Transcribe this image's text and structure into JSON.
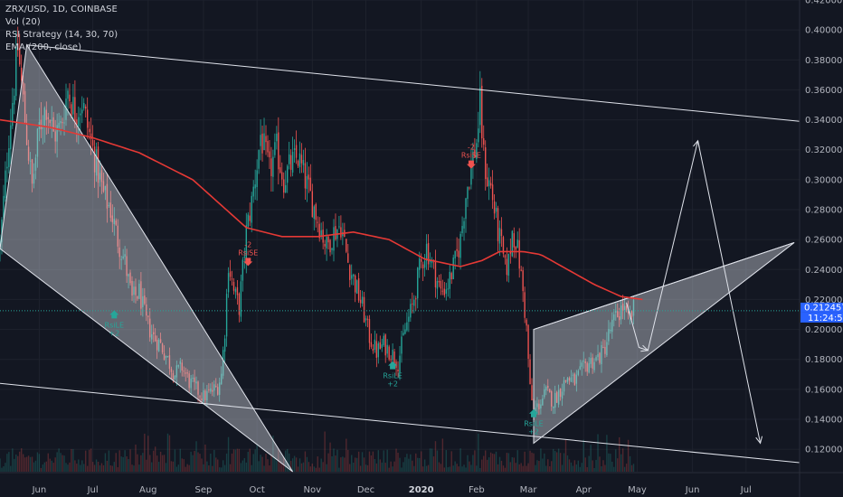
{
  "legend": {
    "symbol": "ZRX/USD, 1D, COINBASE",
    "vol": "Vol (20)",
    "rsi": "RSI Strategy (14, 30, 70)",
    "ema": "EMA (200, close)"
  },
  "colors": {
    "background": "#131722",
    "up": "#26a69a",
    "down": "#ef5350",
    "ema": "#e53935",
    "trendline": "#e0e3eb",
    "triangle_fill": "rgba(210,215,225,0.42)",
    "price_label": "#2962ff",
    "signal_long": "#26a69a",
    "signal_short": "#ef5350"
  },
  "chart_data": {
    "type": "candlestick",
    "y_axis": {
      "ylim": [
        0.105,
        0.42
      ],
      "ticks": [
        "0.420000",
        "0.400000",
        "0.380000",
        "0.360000",
        "0.340000",
        "0.320000",
        "0.300000",
        "0.280000",
        "0.260000",
        "0.240000",
        "0.220000",
        "0.200000",
        "0.180000",
        "0.160000",
        "0.140000",
        "0.120000"
      ]
    },
    "x_axis": {
      "ticks": [
        {
          "label": "Jun",
          "day": 14,
          "bold": false
        },
        {
          "label": "Jul",
          "day": 44,
          "bold": false
        },
        {
          "label": "Aug",
          "day": 75,
          "bold": false
        },
        {
          "label": "Sep",
          "day": 106,
          "bold": false
        },
        {
          "label": "Oct",
          "day": 136,
          "bold": false
        },
        {
          "label": "Nov",
          "day": 167,
          "bold": false
        },
        {
          "label": "Dec",
          "day": 197,
          "bold": false
        },
        {
          "label": "2020",
          "day": 228,
          "bold": true
        },
        {
          "label": "Feb",
          "day": 259,
          "bold": false
        },
        {
          "label": "Mar",
          "day": 288,
          "bold": false
        },
        {
          "label": "Apr",
          "day": 319,
          "bold": false
        },
        {
          "label": "May",
          "day": 349,
          "bold": false
        },
        {
          "label": "Jun",
          "day": 380,
          "bold": false
        },
        {
          "label": "Jul",
          "day": 410,
          "bold": false
        }
      ],
      "day_range": [
        -8,
        440
      ]
    },
    "price_path": [
      [
        -8,
        0.255
      ],
      [
        -3,
        0.33
      ],
      [
        2,
        0.388
      ],
      [
        6,
        0.34
      ],
      [
        10,
        0.295
      ],
      [
        14,
        0.335
      ],
      [
        18,
        0.35
      ],
      [
        22,
        0.33
      ],
      [
        26,
        0.335
      ],
      [
        30,
        0.36
      ],
      [
        34,
        0.345
      ],
      [
        38,
        0.352
      ],
      [
        42,
        0.33
      ],
      [
        46,
        0.31
      ],
      [
        50,
        0.29
      ],
      [
        54,
        0.28
      ],
      [
        58,
        0.26
      ],
      [
        62,
        0.245
      ],
      [
        66,
        0.22
      ],
      [
        70,
        0.225
      ],
      [
        74,
        0.205
      ],
      [
        78,
        0.195
      ],
      [
        82,
        0.19
      ],
      [
        86,
        0.18
      ],
      [
        90,
        0.17
      ],
      [
        94,
        0.175
      ],
      [
        98,
        0.165
      ],
      [
        102,
        0.16
      ],
      [
        106,
        0.155
      ],
      [
        110,
        0.158
      ],
      [
        114,
        0.162
      ],
      [
        116,
        0.17
      ],
      [
        118,
        0.2
      ],
      [
        120,
        0.245
      ],
      [
        123,
        0.225
      ],
      [
        126,
        0.215
      ],
      [
        128,
        0.24
      ],
      [
        130,
        0.265
      ],
      [
        133,
        0.285
      ],
      [
        136,
        0.31
      ],
      [
        138,
        0.33
      ],
      [
        141,
        0.315
      ],
      [
        143,
        0.305
      ],
      [
        147,
        0.32
      ],
      [
        151,
        0.3
      ],
      [
        155,
        0.31
      ],
      [
        159,
        0.315
      ],
      [
        163,
        0.3
      ],
      [
        167,
        0.285
      ],
      [
        171,
        0.27
      ],
      [
        175,
        0.255
      ],
      [
        179,
        0.265
      ],
      [
        183,
        0.27
      ],
      [
        187,
        0.245
      ],
      [
        191,
        0.23
      ],
      [
        195,
        0.215
      ],
      [
        199,
        0.195
      ],
      [
        203,
        0.185
      ],
      [
        207,
        0.19
      ],
      [
        211,
        0.185
      ],
      [
        215,
        0.178
      ],
      [
        219,
        0.2
      ],
      [
        223,
        0.215
      ],
      [
        227,
        0.24
      ],
      [
        231,
        0.255
      ],
      [
        235,
        0.24
      ],
      [
        239,
        0.225
      ],
      [
        243,
        0.23
      ],
      [
        247,
        0.245
      ],
      [
        250,
        0.26
      ],
      [
        253,
        0.29
      ],
      [
        256,
        0.31
      ],
      [
        259,
        0.325
      ],
      [
        261,
        0.35
      ],
      [
        263,
        0.315
      ],
      [
        265,
        0.3
      ],
      [
        267,
        0.295
      ],
      [
        269,
        0.28
      ],
      [
        271,
        0.265
      ],
      [
        273,
        0.255
      ],
      [
        275,
        0.24
      ],
      [
        277,
        0.245
      ],
      [
        279,
        0.265
      ],
      [
        281,
        0.26
      ],
      [
        283,
        0.245
      ],
      [
        285,
        0.225
      ],
      [
        287,
        0.2
      ],
      [
        289,
        0.16
      ],
      [
        291,
        0.145
      ],
      [
        294,
        0.15
      ],
      [
        298,
        0.158
      ],
      [
        302,
        0.152
      ],
      [
        306,
        0.16
      ],
      [
        310,
        0.168
      ],
      [
        314,
        0.165
      ],
      [
        318,
        0.172
      ],
      [
        322,
        0.178
      ],
      [
        326,
        0.18
      ],
      [
        330,
        0.185
      ],
      [
        334,
        0.2
      ],
      [
        338,
        0.21
      ],
      [
        341,
        0.215
      ],
      [
        344,
        0.205
      ],
      [
        347,
        0.213
      ]
    ],
    "ema_path": [
      [
        -8,
        0.34
      ],
      [
        20,
        0.335
      ],
      [
        44,
        0.328
      ],
      [
        70,
        0.318
      ],
      [
        100,
        0.3
      ],
      [
        130,
        0.268
      ],
      [
        150,
        0.262
      ],
      [
        170,
        0.262
      ],
      [
        190,
        0.265
      ],
      [
        210,
        0.26
      ],
      [
        230,
        0.247
      ],
      [
        250,
        0.242
      ],
      [
        262,
        0.246
      ],
      [
        272,
        0.252
      ],
      [
        285,
        0.252
      ],
      [
        295,
        0.25
      ],
      [
        310,
        0.24
      ],
      [
        325,
        0.23
      ],
      [
        340,
        0.222
      ],
      [
        352,
        0.22
      ]
    ],
    "current_price": 0.212457,
    "countdown": "11:24:51",
    "signals": [
      {
        "day": 56,
        "price": 0.211,
        "dir": "long",
        "label": "RsiLE",
        "qty": "+2"
      },
      {
        "day": 131,
        "price": 0.243,
        "dir": "short",
        "label": "RsiSE",
        "qty": "-2"
      },
      {
        "day": 212,
        "price": 0.177,
        "dir": "long",
        "label": "RsiLE",
        "qty": "+2"
      },
      {
        "day": 256,
        "price": 0.308,
        "dir": "short",
        "label": "RsiSE",
        "qty": "-2"
      },
      {
        "day": 291,
        "price": 0.145,
        "dir": "long",
        "label": "RsiLE",
        "qty": "+2"
      }
    ],
    "trendlines": [
      {
        "from": [
          7,
          0.39
        ],
        "to": [
          440,
          0.339
        ]
      },
      {
        "from": [
          -8,
          0.164
        ],
        "to": [
          440,
          0.111
        ]
      },
      {
        "from": [
          291,
          0.2
        ],
        "to": [
          437,
          0.258
        ]
      }
    ],
    "triangles": [
      {
        "points": [
          [
            -8,
            0.254
          ],
          [
            7,
            0.39
          ],
          [
            156,
            0.105
          ]
        ]
      },
      {
        "points": [
          [
            291,
            0.2
          ],
          [
            291,
            0.124
          ],
          [
            437,
            0.258
          ]
        ]
      }
    ],
    "projection_arrows": [
      {
        "points": [
          [
            343,
            0.218
          ],
          [
            350,
            0.188
          ],
          [
            355,
            0.186
          ]
        ]
      },
      {
        "points": [
          [
            355,
            0.186
          ],
          [
            383,
            0.326
          ]
        ]
      },
      {
        "points": [
          [
            383,
            0.326
          ],
          [
            418,
            0.124
          ]
        ]
      }
    ]
  }
}
